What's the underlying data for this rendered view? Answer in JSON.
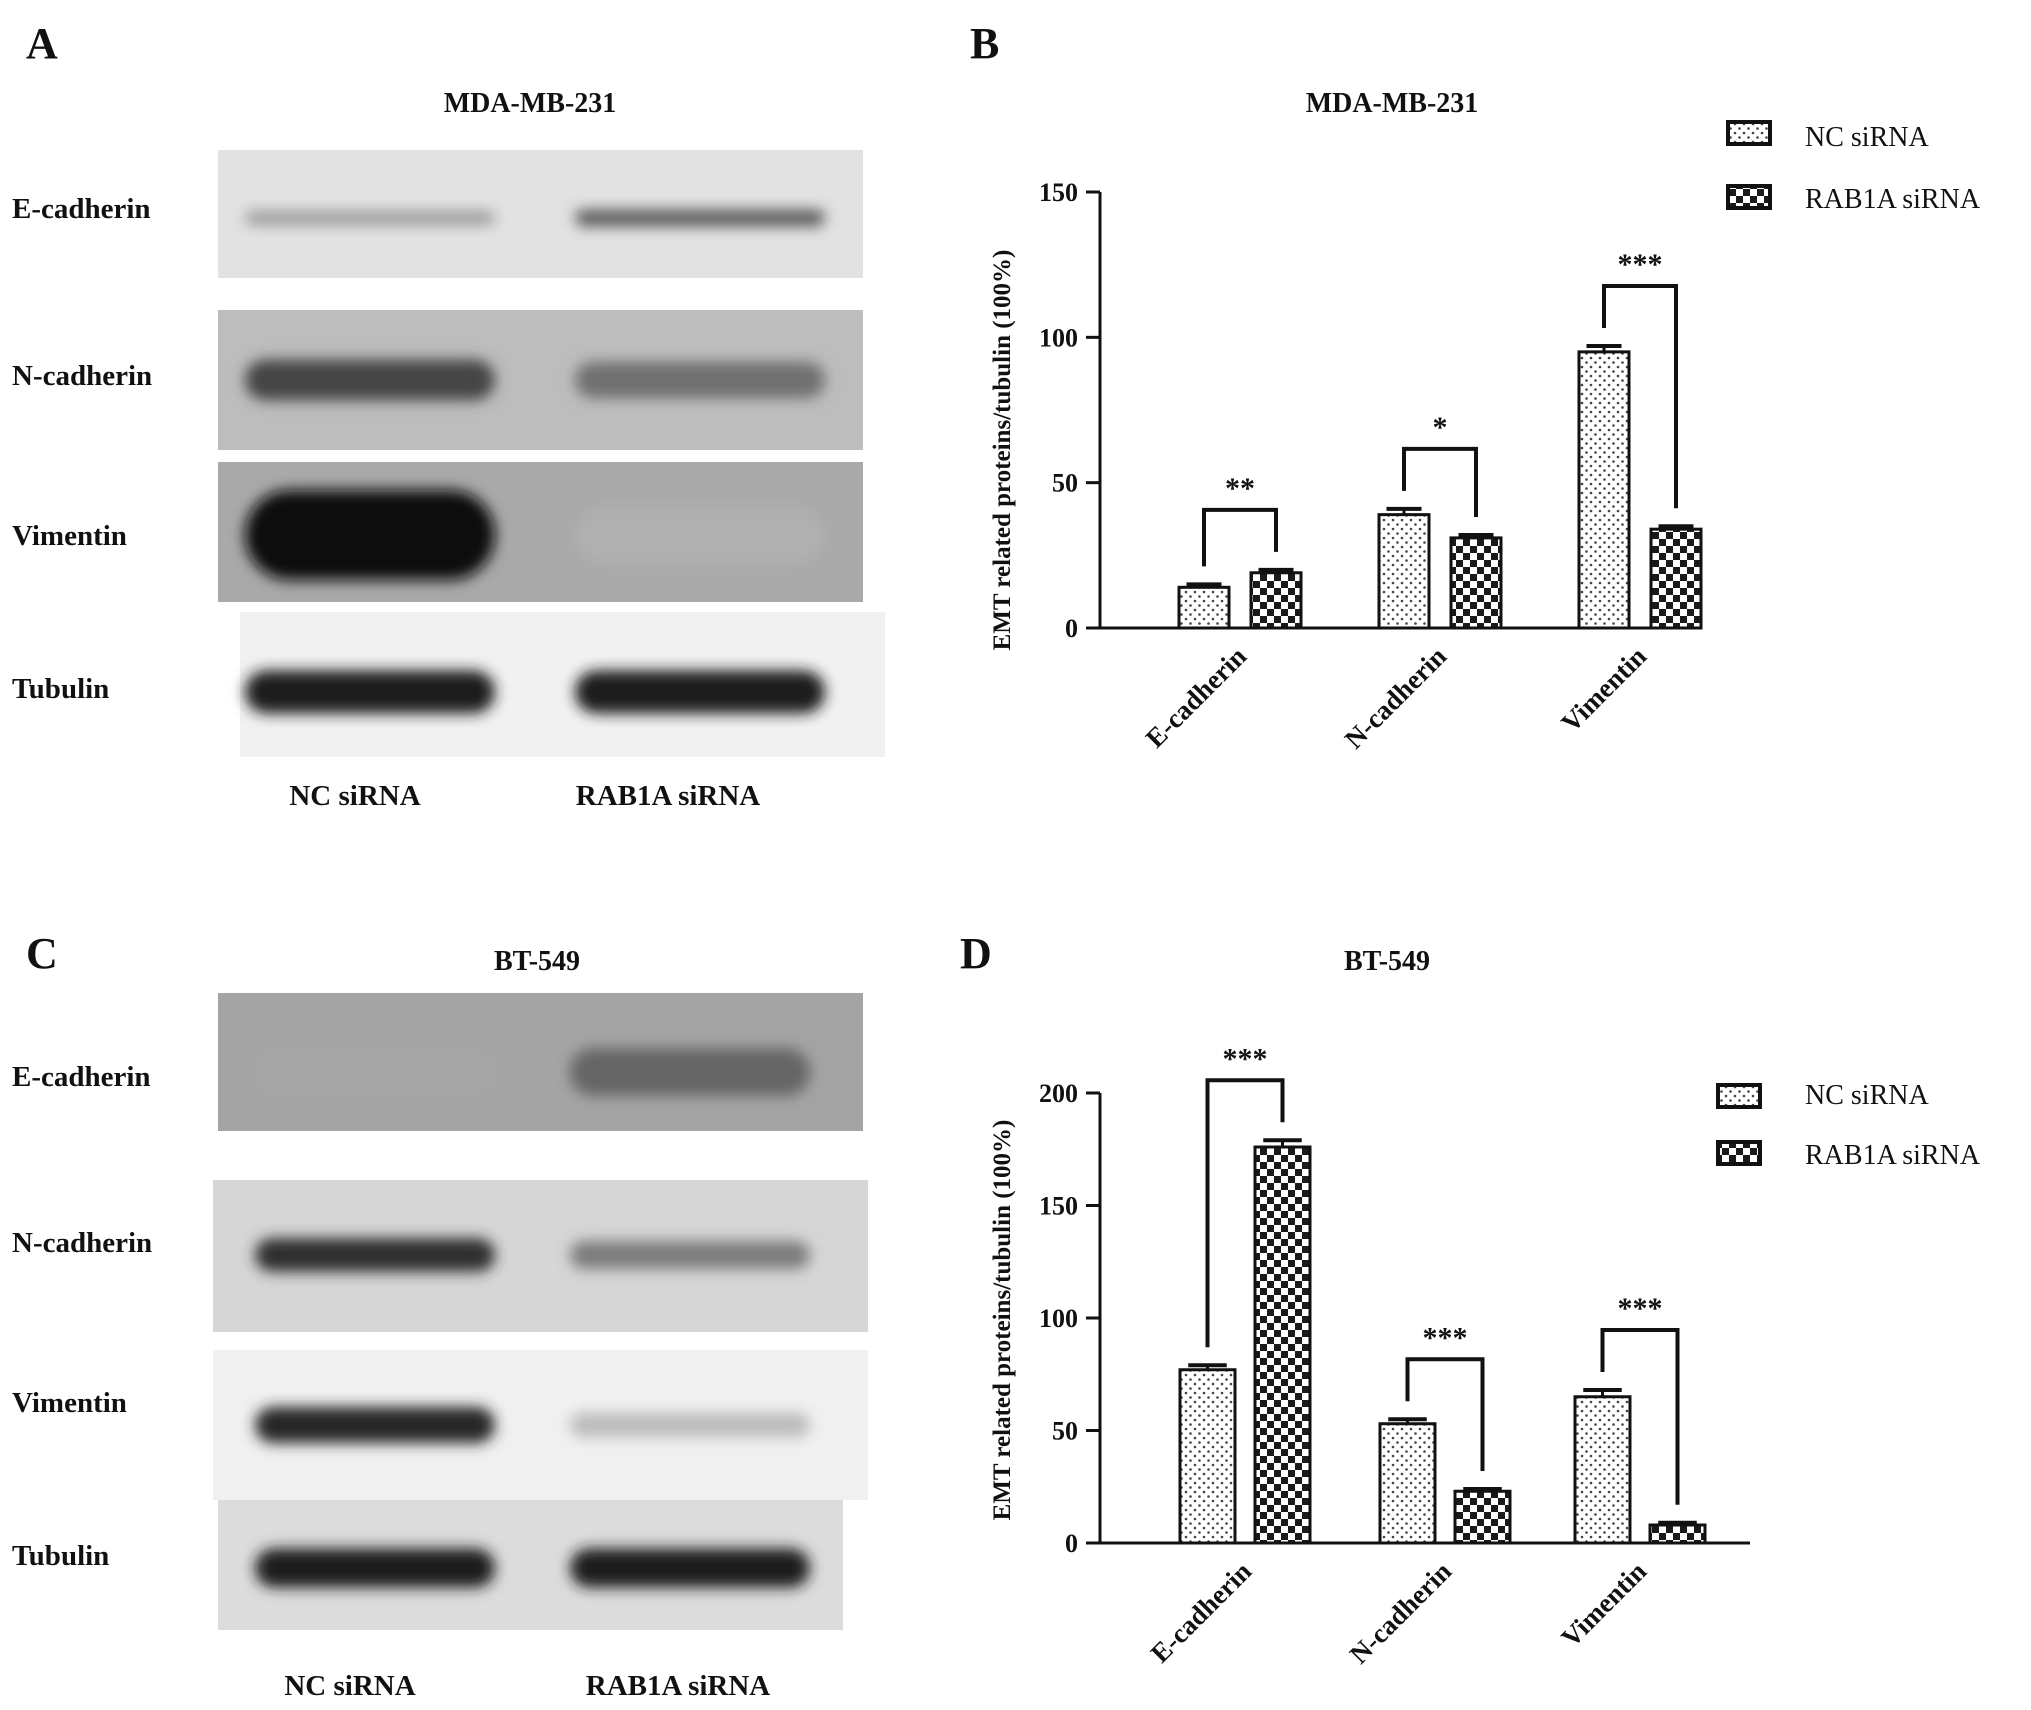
{
  "panels": [
    {
      "letter": "A"
    },
    {
      "letter": "B"
    },
    {
      "letter": "C"
    },
    {
      "letter": "D"
    }
  ],
  "blots": [
    {
      "panel": "A",
      "title": "MDA-MB-231",
      "bands": [
        {
          "label": "E-cadherin",
          "bg": "#e2e2e2",
          "left": 0.35,
          "right": 0.65
        },
        {
          "label": "N-cadherin",
          "bg": "#bdbdbd",
          "left": 0.75,
          "right": 0.55
        },
        {
          "label": "Vimentin",
          "bg": "#a9a9a9",
          "left": 1.0,
          "right": 0.25
        },
        {
          "label": "Tubulin",
          "bg": "#f1f1f1",
          "left": 0.95,
          "right": 0.95
        }
      ],
      "lanes": [
        "NC siRNA",
        "RAB1A siRNA"
      ]
    },
    {
      "panel": "C",
      "title": "BT-549",
      "bands": [
        {
          "label": "E-cadherin",
          "bg": "#a4a4a4",
          "left": 0.3,
          "right": 0.6
        },
        {
          "label": "N-cadherin",
          "bg": "#d6d6d6",
          "left": 0.85,
          "right": 0.5
        },
        {
          "label": "Vimentin",
          "bg": "#f0f0f0",
          "left": 0.9,
          "right": 0.2
        },
        {
          "label": "Tubulin",
          "bg": "#dcdcdc",
          "left": 0.95,
          "right": 0.95
        }
      ],
      "lanes": [
        "NC siRNA",
        "RAB1A siRNA"
      ]
    }
  ],
  "chart_data": [
    {
      "panel": "B",
      "type": "bar",
      "title": "MDA-MB-231",
      "categories": [
        "E-cadherin",
        "N-cadherin",
        "Vimentin"
      ],
      "series": [
        {
          "name": "NC siRNA",
          "values": [
            14,
            39,
            95
          ],
          "errors": [
            1,
            2,
            2
          ]
        },
        {
          "name": "RAB1A siRNA",
          "values": [
            19,
            31,
            34
          ],
          "errors": [
            1,
            1,
            1
          ]
        }
      ],
      "significance": [
        "**",
        "*",
        "***"
      ],
      "xlabel": "",
      "ylabel": "EMT related proteins/tubulin (100%)",
      "ylim": [
        0,
        150
      ],
      "yticks": [
        0,
        50,
        100,
        150
      ],
      "grid": false,
      "legend": "top-right"
    },
    {
      "panel": "D",
      "type": "bar",
      "title": "BT-549",
      "categories": [
        "E-cadherin",
        "N-cadherin",
        "Vimentin"
      ],
      "series": [
        {
          "name": "NC siRNA",
          "values": [
            77,
            53,
            65
          ],
          "errors": [
            2,
            2,
            3
          ]
        },
        {
          "name": "RAB1A siRNA",
          "values": [
            176,
            23,
            8
          ],
          "errors": [
            3,
            1,
            1
          ]
        }
      ],
      "significance": [
        "***",
        "***",
        "***"
      ],
      "xlabel": "",
      "ylabel": "EMT related proteins/tubulin (100%)",
      "ylim": [
        0,
        200
      ],
      "yticks": [
        0,
        50,
        100,
        150,
        200
      ],
      "grid": false,
      "legend": "top-right"
    }
  ]
}
